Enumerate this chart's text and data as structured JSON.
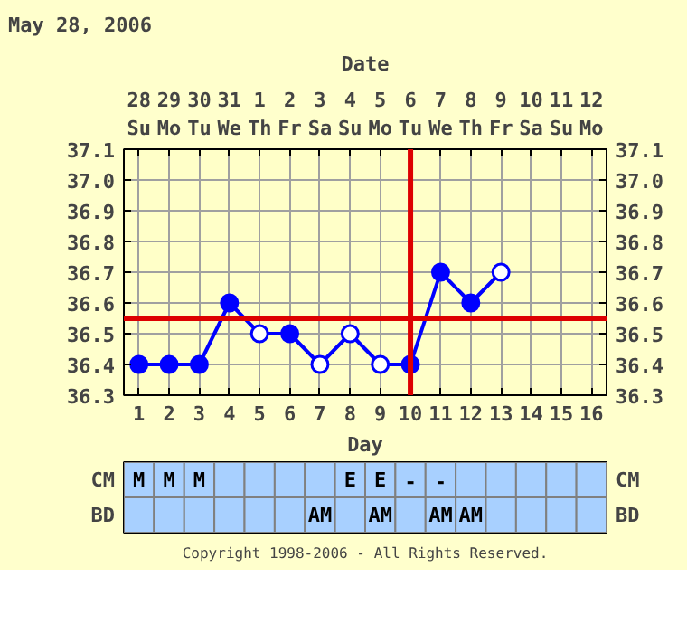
{
  "chart_data": [
    {
      "type": "line",
      "title": "May 28, 2006",
      "xlabel": "Day",
      "x2label": "Date",
      "x": [
        1,
        2,
        3,
        4,
        5,
        6,
        7,
        8,
        9,
        10,
        11,
        12,
        13
      ],
      "series": [
        {
          "color": "#0000ff",
          "values": [
            36.4,
            36.4,
            36.4,
            36.6,
            36.5,
            36.5,
            36.4,
            36.5,
            36.4,
            36.4,
            36.7,
            36.6,
            36.7
          ],
          "colors": [
            "#0000ff",
            "#0000ff",
            "#0000ff",
            "#0000ff",
            "#ffffff",
            "#0000ff",
            "#ffffff",
            "#ffffff",
            "#ffffff",
            "#0000ff",
            "#0000ff",
            "#0000ff",
            "#ffffff"
          ]
        }
      ],
      "xlim": [
        0.5,
        16.5
      ],
      "xticks": [
        1,
        2,
        3,
        4,
        5,
        6,
        7,
        8,
        9,
        10,
        11,
        12,
        13,
        14,
        15,
        16
      ],
      "ylim": [
        36.3,
        37.1
      ],
      "yticks": [
        {
          "value": 36.3,
          "label": "36.3"
        },
        {
          "value": 36.4,
          "label": "36.4"
        },
        {
          "value": 36.5,
          "label": "36.5"
        },
        {
          "value": 36.6,
          "label": "36.6"
        },
        {
          "value": 36.7,
          "label": "36.7"
        },
        {
          "value": 36.8,
          "label": "36.8"
        },
        {
          "value": 36.9,
          "label": "36.9"
        },
        {
          "value": 37.0,
          "label": "37.0"
        },
        {
          "value": 37.1,
          "label": "37.1"
        }
      ],
      "y2lim": [
        36.3,
        37.1
      ],
      "y2ticks": [
        {
          "value": 36.3,
          "label": "36.3"
        },
        {
          "value": 36.4,
          "label": "36.4"
        },
        {
          "value": 36.5,
          "label": "36.5"
        },
        {
          "value": 36.6,
          "label": "36.6"
        },
        {
          "value": 36.7,
          "label": "36.7"
        },
        {
          "value": 36.8,
          "label": "36.8"
        },
        {
          "value": 36.9,
          "label": "36.9"
        },
        {
          "value": 37.0,
          "label": "37.0"
        },
        {
          "value": 37.1,
          "label": "37.1"
        }
      ],
      "ref_lines": [
        {
          "axis": "x",
          "value": 10,
          "color": "#dd0000"
        },
        {
          "axis": "y",
          "value": 36.55,
          "color": "#dd0000"
        }
      ],
      "grid": true,
      "marker": "circle",
      "line_style": "solid",
      "annotations": [
        "28 Su",
        "29 Mo",
        "30 Tu",
        "31 We",
        "1 Th",
        "2 Fr",
        "3 Sa",
        "4 Su",
        "5 Mo",
        "6 Tu",
        "7 We",
        "8 Th",
        "9 Fr",
        "10 Sa",
        "11 Su",
        "12 Mo"
      ]
    },
    {
      "type": "heatmap",
      "categories": [
        null,
        null,
        null,
        null,
        null,
        null,
        null,
        null,
        null,
        null,
        null,
        null,
        null,
        null,
        null,
        null
      ],
      "y_categories": [
        "CM",
        "BD"
      ],
      "y2_categories": [
        "CM",
        "BD"
      ],
      "cells": [
        [
          null,
          null,
          null,
          null,
          null,
          null,
          null,
          null,
          null,
          null,
          null,
          null,
          null,
          null,
          null,
          null
        ],
        [
          null,
          null,
          null,
          null,
          null,
          null,
          null,
          null,
          null,
          null,
          null,
          null,
          null,
          null,
          null,
          null
        ]
      ],
      "cell_labels": [
        [
          "M",
          "M",
          "M",
          null,
          null,
          null,
          null,
          "E",
          "E",
          "-",
          "-",
          null,
          null,
          null,
          null,
          null
        ],
        [
          null,
          null,
          null,
          null,
          null,
          null,
          "AM",
          null,
          "AM",
          null,
          "AM",
          "AM",
          null,
          null,
          null,
          null
        ]
      ],
      "annotations": [
        "Copyright 1998-2006 - All Rights Reserved."
      ]
    }
  ]
}
